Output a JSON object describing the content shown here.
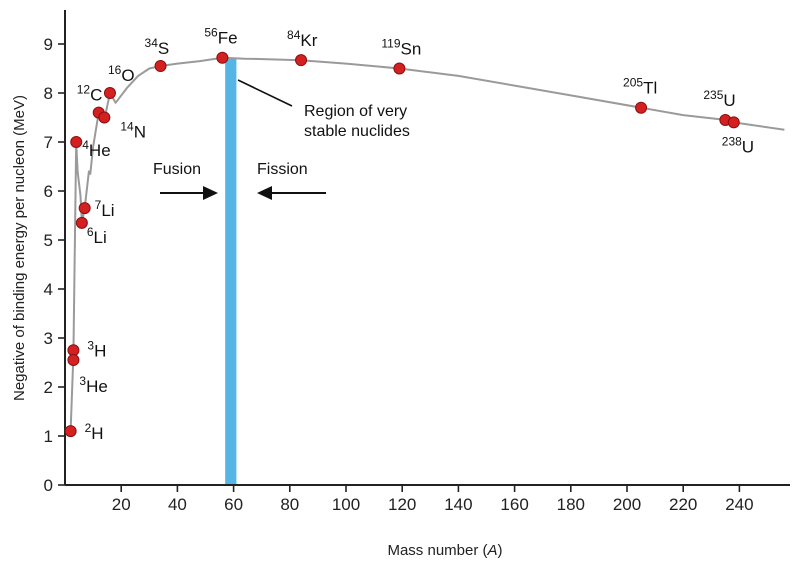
{
  "chart_data": {
    "type": "line",
    "title": "",
    "xlabel_prefix": "Mass number (",
    "xlabel_var": "A",
    "xlabel_suffix": ")",
    "ylabel": "Negative of binding energy per nucleon (MeV)",
    "xlim": [
      0,
      256
    ],
    "ylim": [
      0,
      9.6
    ],
    "xticks": [
      20,
      40,
      60,
      80,
      100,
      120,
      140,
      160,
      180,
      200,
      220,
      240
    ],
    "yticks": [
      0,
      1,
      2,
      3,
      4,
      5,
      6,
      7,
      8,
      9
    ],
    "grid": false,
    "curve": {
      "x": [
        2,
        3,
        4,
        4.5,
        5.5,
        6,
        7,
        8.5,
        9,
        10,
        12,
        14,
        16,
        18,
        22,
        26,
        30,
        34,
        40,
        48,
        56,
        64,
        72,
        84,
        100,
        119,
        140,
        160,
        180,
        205,
        220,
        235,
        238,
        256
      ],
      "y": [
        1.1,
        2.65,
        7.0,
        6.4,
        5.9,
        5.35,
        5.65,
        6.4,
        6.35,
        6.9,
        7.6,
        7.45,
        8.0,
        7.8,
        8.1,
        8.35,
        8.5,
        8.55,
        8.6,
        8.65,
        8.72,
        8.7,
        8.69,
        8.67,
        8.6,
        8.5,
        8.35,
        8.15,
        7.95,
        7.7,
        7.55,
        7.45,
        7.4,
        7.25
      ]
    },
    "nuclides": [
      {
        "mass": "2",
        "symbol": "H",
        "x": 2,
        "y": 1.1
      },
      {
        "mass": "3",
        "symbol": "H",
        "x": 3,
        "y": 2.75
      },
      {
        "mass": "3",
        "symbol": "He",
        "x": 3,
        "y": 2.55
      },
      {
        "mass": "4",
        "symbol": "He",
        "x": 4,
        "y": 7.0
      },
      {
        "mass": "6",
        "symbol": "Li",
        "x": 6,
        "y": 5.35
      },
      {
        "mass": "7",
        "symbol": "Li",
        "x": 7,
        "y": 5.65
      },
      {
        "mass": "12",
        "symbol": "C",
        "x": 12,
        "y": 7.6
      },
      {
        "mass": "14",
        "symbol": "N",
        "x": 14,
        "y": 7.5
      },
      {
        "mass": "16",
        "symbol": "O",
        "x": 16,
        "y": 8.0
      },
      {
        "mass": "34",
        "symbol": "S",
        "x": 34,
        "y": 8.55
      },
      {
        "mass": "56",
        "symbol": "Fe",
        "x": 56,
        "y": 8.72
      },
      {
        "mass": "84",
        "symbol": "Kr",
        "x": 84,
        "y": 8.67
      },
      {
        "mass": "119",
        "symbol": "Sn",
        "x": 119,
        "y": 8.5
      },
      {
        "mass": "205",
        "symbol": "Tl",
        "x": 205,
        "y": 7.7
      },
      {
        "mass": "235",
        "symbol": "U",
        "x": 235,
        "y": 7.45
      },
      {
        "mass": "238",
        "symbol": "U",
        "x": 238,
        "y": 7.4
      }
    ],
    "stable_band": {
      "x_from": 57,
      "x_to": 61,
      "color": "#55b6e6"
    },
    "annotations": {
      "region_line1": "Region of very",
      "region_line2": "stable nuclides",
      "fusion": "Fusion",
      "fission": "Fission"
    },
    "colors": {
      "marker": "#d42020",
      "marker_stroke": "#8a1010",
      "curve": "#9a9a9a",
      "axis": "#222222"
    }
  }
}
